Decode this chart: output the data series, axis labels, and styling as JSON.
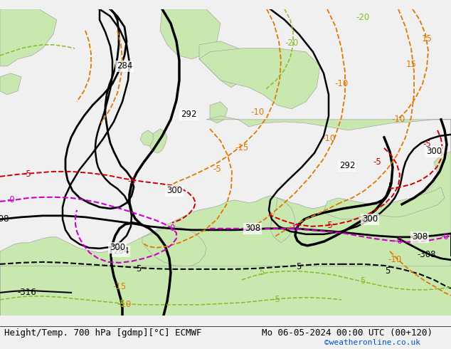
{
  "title_left": "Height/Temp. 700 hPa [gdmp][°C] ECMWF",
  "title_right": "Mo 06-05-2024 00:00 UTC (00+120)",
  "credit": "©weatheronline.co.uk",
  "bg_color": "#d8d8d8",
  "land_color": "#c8e8b0",
  "label_fontsize": 8.5,
  "title_fontsize": 9,
  "credit_fontsize": 8,
  "credit_color": "#0055cc",
  "figsize": [
    6.34,
    4.9
  ],
  "dpi": 100
}
